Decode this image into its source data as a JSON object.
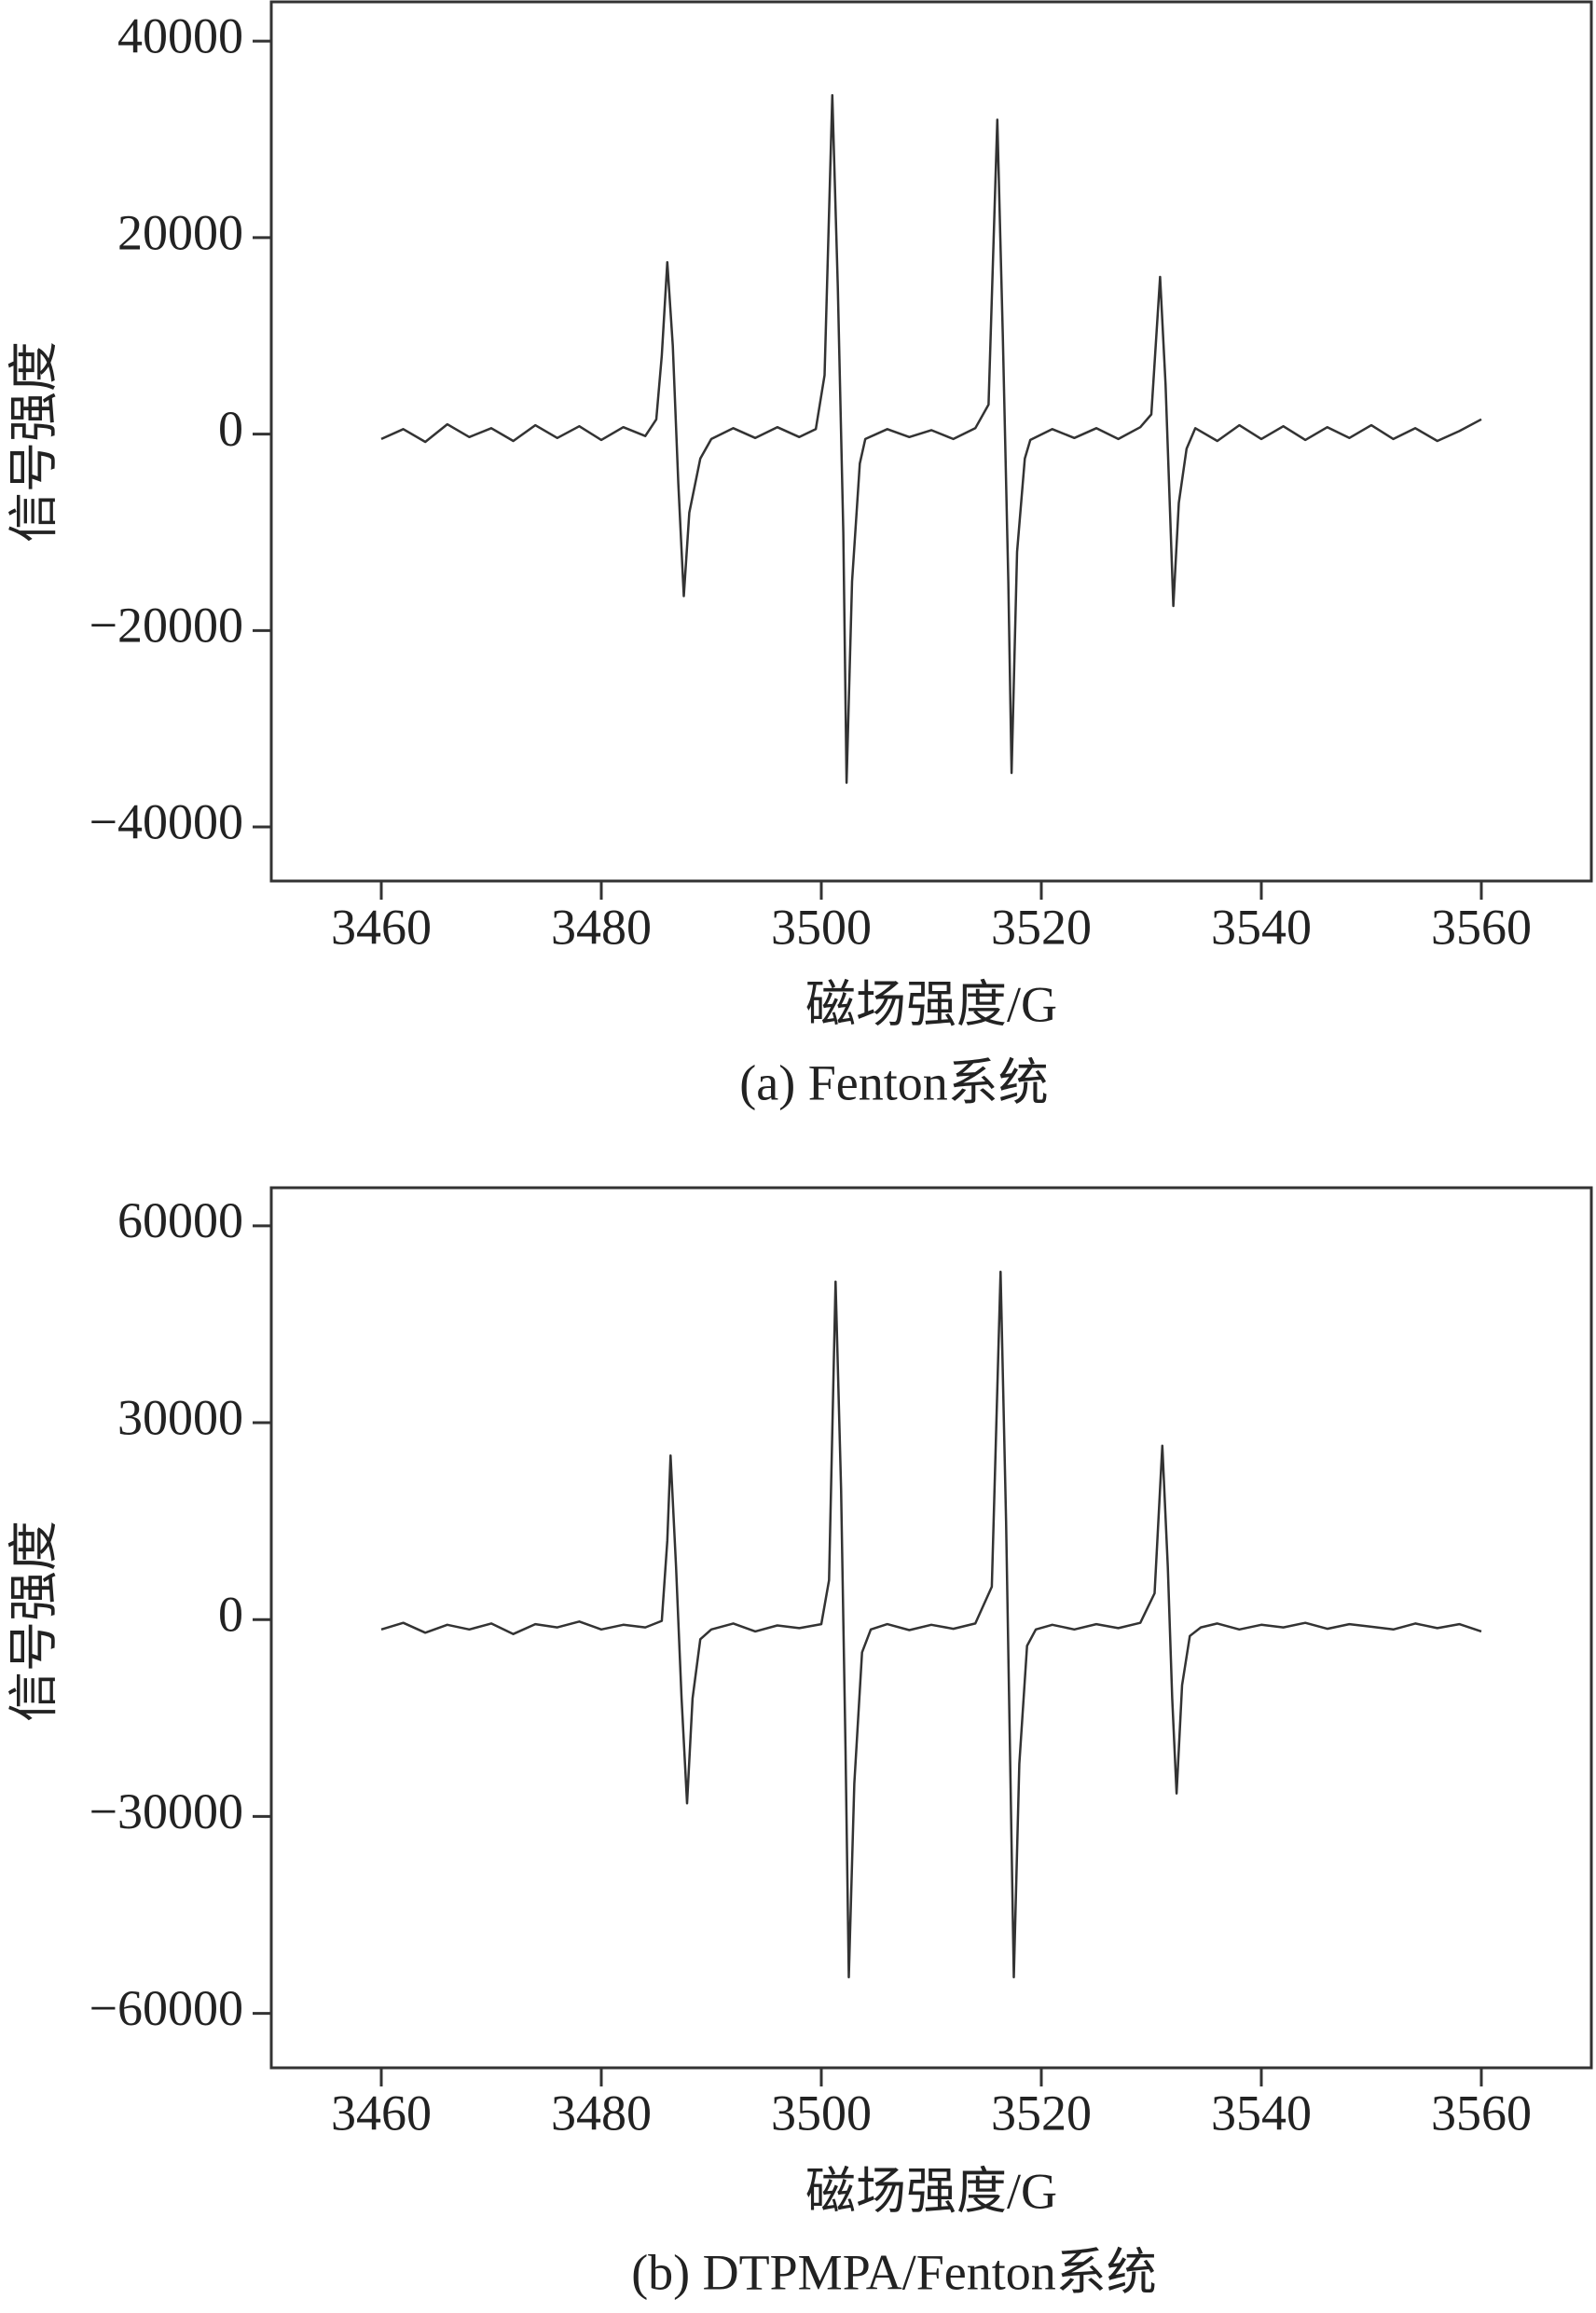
{
  "chart_data": [
    {
      "type": "line",
      "x_label": "磁场强度/G",
      "y_label": "信号强度",
      "caption": "(a) Fenton系统",
      "xlim": [
        3450,
        3570
      ],
      "xticks": [
        3460,
        3480,
        3500,
        3520,
        3540,
        3560
      ],
      "ylim": [
        -45500,
        44000
      ],
      "yticks": [
        {
          "value": -40000,
          "label": "−40000"
        },
        {
          "value": -20000,
          "label": "−20000"
        },
        0,
        20000,
        40000
      ],
      "series": [
        {
          "color": "#333333",
          "x": [
            3460,
            3462,
            3464,
            3466,
            3468,
            3470,
            3472,
            3474,
            3476,
            3478,
            3480,
            3482,
            3484,
            3485,
            3485.5,
            3486,
            3486.5,
            3487,
            3487.5,
            3488,
            3489,
            3490,
            3492,
            3494,
            3496,
            3498,
            3499.5,
            3500.3,
            3501,
            3501.5,
            3502,
            3502.3,
            3502.8,
            3503.5,
            3504,
            3506,
            3508,
            3510,
            3512,
            3514,
            3515.2,
            3516,
            3516.5,
            3517,
            3517.3,
            3517.8,
            3518.5,
            3519,
            3521,
            3523,
            3525,
            3527,
            3529,
            3530,
            3530.8,
            3531.3,
            3531.7,
            3532,
            3532.5,
            3533.2,
            3534,
            3536,
            3538,
            3540,
            3542,
            3544,
            3546,
            3548,
            3550,
            3552,
            3554,
            3556,
            3558,
            3560
          ],
          "values": [
            -500,
            500,
            -800,
            1000,
            -300,
            600,
            -700,
            900,
            -400,
            800,
            -600,
            700,
            -200,
            1500,
            8000,
            17500,
            9000,
            -5000,
            -16500,
            -8000,
            -2500,
            -500,
            600,
            -400,
            700,
            -300,
            500,
            6000,
            34500,
            15000,
            -10000,
            -35500,
            -15000,
            -3000,
            -500,
            500,
            -300,
            400,
            -500,
            600,
            3000,
            32000,
            10000,
            -15000,
            -34500,
            -12000,
            -2500,
            -600,
            500,
            -400,
            600,
            -500,
            700,
            2000,
            16000,
            5000,
            -8000,
            -17500,
            -7000,
            -1500,
            600,
            -700,
            900,
            -500,
            800,
            -600,
            700,
            -400,
            900,
            -500,
            600,
            -700,
            300,
            1500
          ]
        }
      ]
    },
    {
      "type": "line",
      "x_label": "磁场强度/G",
      "y_label": "信号强度",
      "caption": "(b) DTPMPA/Fenton系统",
      "xlim": [
        3450,
        3570
      ],
      "xticks": [
        3460,
        3480,
        3500,
        3520,
        3540,
        3560
      ],
      "ylim": [
        -68300,
        65800
      ],
      "yticks": [
        {
          "value": -60000,
          "label": "−60000"
        },
        {
          "value": -30000,
          "label": "−30000"
        },
        0,
        30000,
        60000
      ],
      "series": [
        {
          "color": "#333333",
          "x": [
            3460,
            3462,
            3464,
            3466,
            3468,
            3470,
            3472,
            3474,
            3476,
            3478,
            3480,
            3482,
            3484,
            3485.5,
            3486,
            3486.3,
            3486.8,
            3487.3,
            3487.8,
            3488.3,
            3489,
            3490,
            3492,
            3494,
            3496,
            3498,
            3500,
            3500.7,
            3501.3,
            3501.8,
            3502.2,
            3502.5,
            3503,
            3503.7,
            3504.5,
            3506,
            3508,
            3510,
            3512,
            3514,
            3515.5,
            3516.3,
            3516.8,
            3517.2,
            3517.5,
            3518,
            3518.7,
            3519.5,
            3521,
            3523,
            3525,
            3527,
            3529,
            3530.3,
            3531,
            3531.5,
            3531.9,
            3532.3,
            3532.8,
            3533.5,
            3534.5,
            3536,
            3538,
            3540,
            3542,
            3544,
            3546,
            3548,
            3550,
            3552,
            3554,
            3556,
            3558,
            3560
          ],
          "values": [
            -1500,
            -500,
            -2000,
            -800,
            -1500,
            -600,
            -2200,
            -700,
            -1200,
            -300,
            -1500,
            -800,
            -1200,
            -200,
            12000,
            25000,
            8000,
            -12000,
            -28000,
            -12000,
            -3000,
            -1500,
            -600,
            -1800,
            -900,
            -1300,
            -700,
            6000,
            51500,
            20000,
            -20000,
            -54500,
            -25000,
            -5000,
            -1500,
            -700,
            -1600,
            -800,
            -1400,
            -600,
            5000,
            53000,
            15000,
            -25000,
            -54500,
            -22000,
            -4000,
            -1500,
            -800,
            -1500,
            -700,
            -1300,
            -500,
            4000,
            26500,
            8000,
            -12000,
            -26500,
            -10000,
            -2500,
            -1200,
            -600,
            -1500,
            -800,
            -1200,
            -500,
            -1400,
            -700,
            -1100,
            -1500,
            -600,
            -1300,
            -700,
            -1800
          ]
        }
      ]
    }
  ]
}
